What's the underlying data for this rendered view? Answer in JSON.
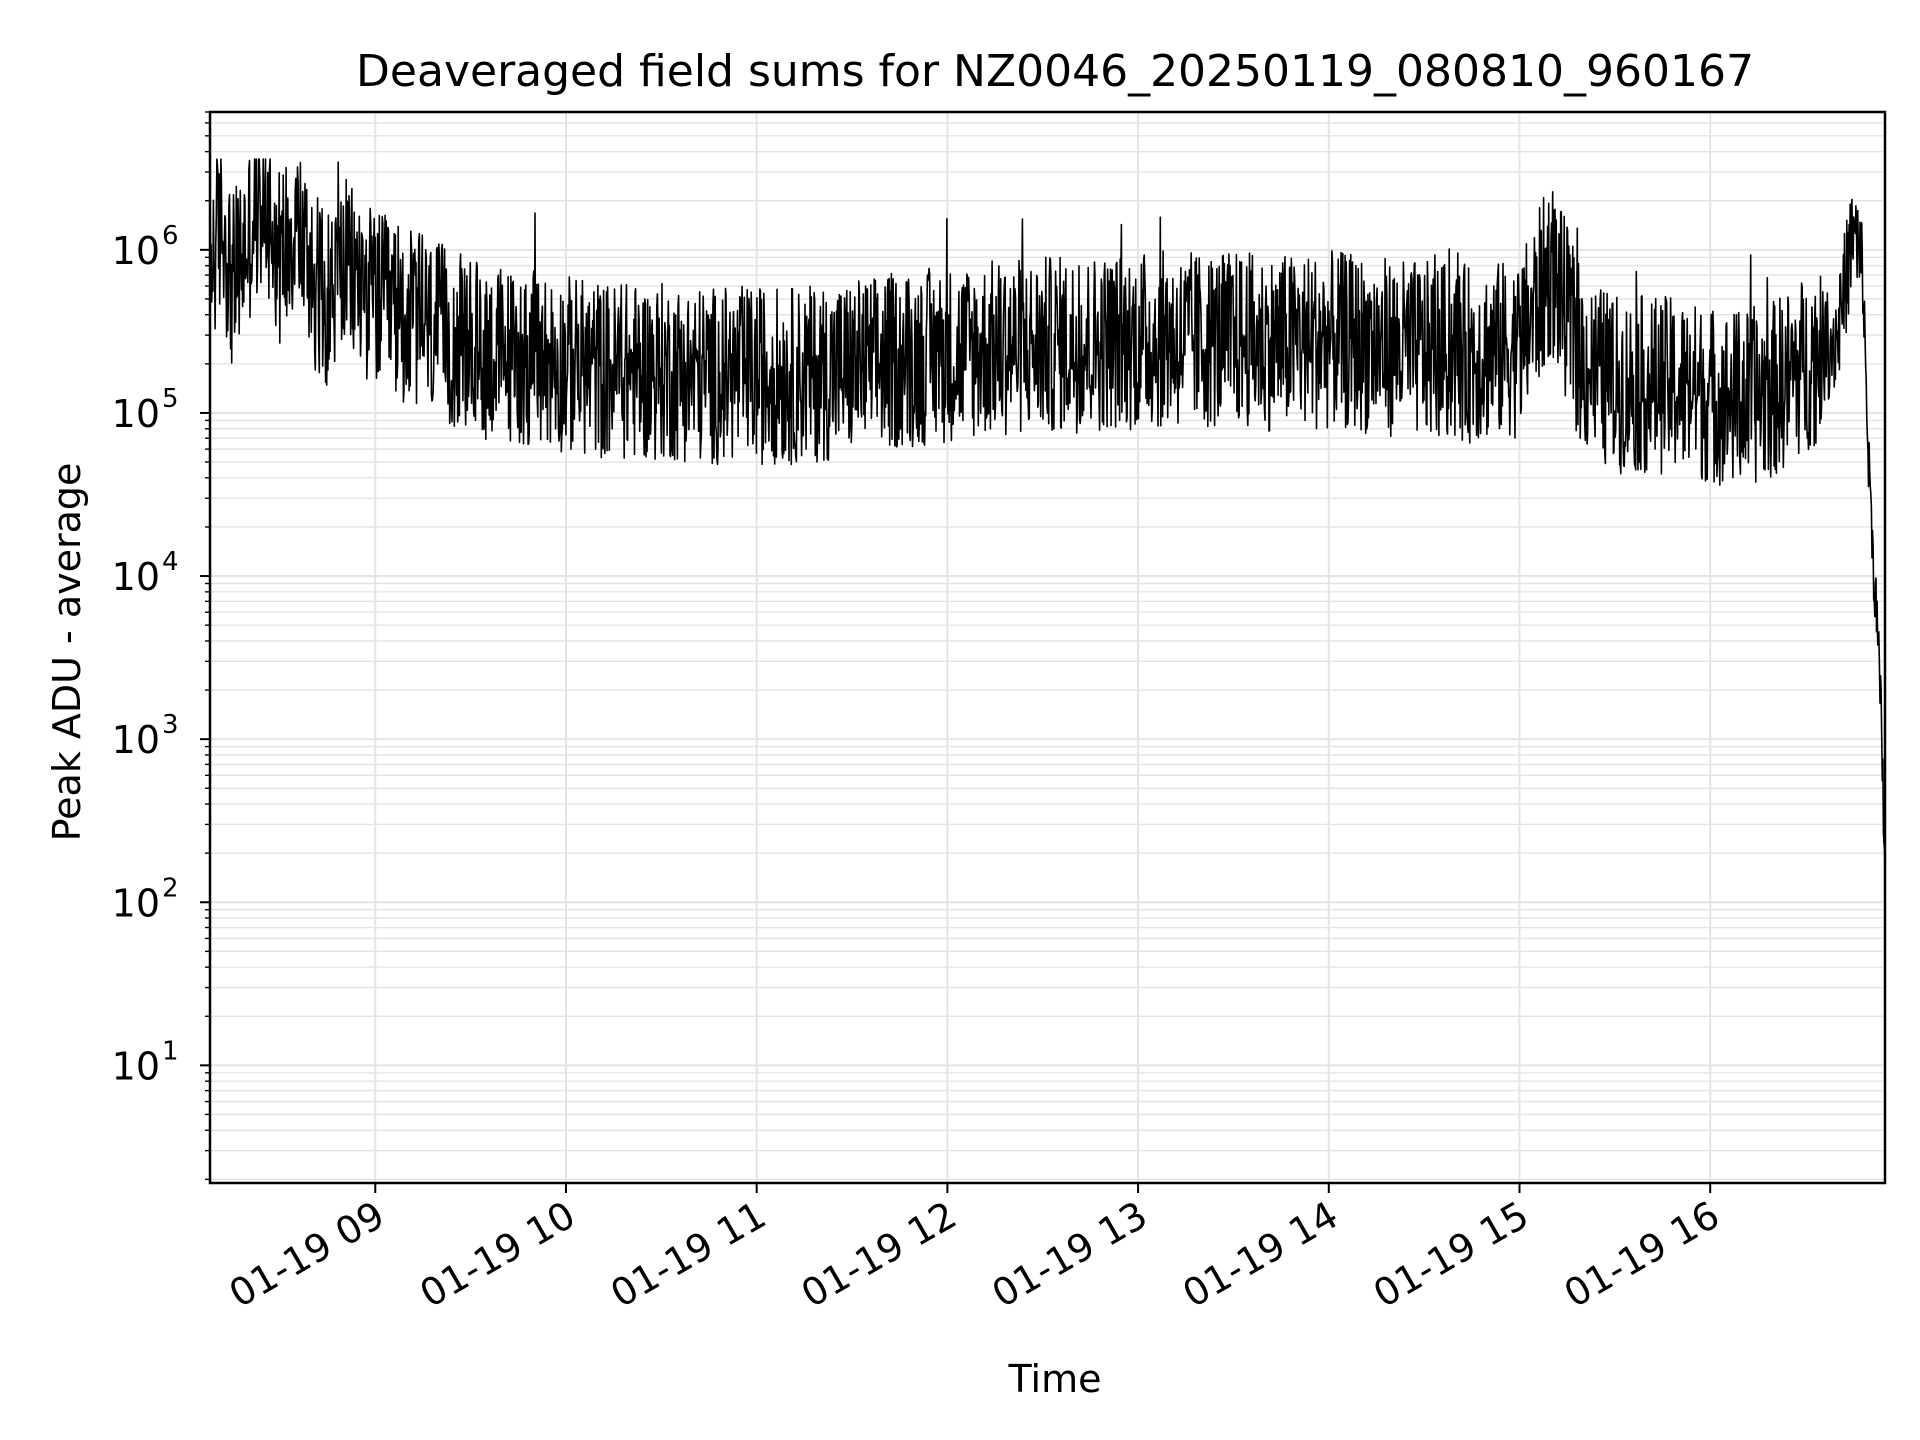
{
  "chart_data": {
    "type": "line",
    "title": "Deaveraged field sums for NZ0046_20250119_080810_960167",
    "xlabel": "Time",
    "ylabel": "Peak ADU - average",
    "y_scale": "log",
    "ylim": [
      1.9,
      7000000
    ],
    "xlim": [
      "01-19 08:08",
      "01-19 16:55"
    ],
    "grid": true,
    "legend": "none",
    "colors": {
      "line": "#000000",
      "grid": "#e4e4e4",
      "axes": "#000000",
      "background": "#ffffff"
    },
    "x_ticks": [
      {
        "label": "01-19 09",
        "hour": 9
      },
      {
        "label": "01-19 10",
        "hour": 10
      },
      {
        "label": "01-19 11",
        "hour": 11
      },
      {
        "label": "01-19 12",
        "hour": 12
      },
      {
        "label": "01-19 13",
        "hour": 13
      },
      {
        "label": "01-19 14",
        "hour": 14
      },
      {
        "label": "01-19 15",
        "hour": 15
      },
      {
        "label": "01-19 16",
        "hour": 16
      }
    ],
    "y_ticks": [
      {
        "base": "10",
        "exp": "1",
        "value": 10
      },
      {
        "base": "10",
        "exp": "2",
        "value": 100
      },
      {
        "base": "10",
        "exp": "3",
        "value": 1000
      },
      {
        "base": "10",
        "exp": "4",
        "value": 10000
      },
      {
        "base": "10",
        "exp": "5",
        "value": 100000
      },
      {
        "base": "10",
        "exp": "6",
        "value": 1000000
      }
    ],
    "series": [
      {
        "x": [
          "01-19 08:08",
          "01-19 08:12",
          "01-19 08:15",
          "01-19 08:20",
          "01-19 08:25",
          "01-19 08:30",
          "01-19 08:35",
          "01-19 08:40",
          "01-19 08:45",
          "01-19 08:50",
          "01-19 09:00",
          "01-19 09:15",
          "01-19 09:30",
          "01-19 09:45",
          "01-19 10:00",
          "01-19 10:15",
          "01-19 10:30",
          "01-19 10:45",
          "01-19 11:00",
          "01-19 11:15",
          "01-19 11:30",
          "01-19 11:45",
          "01-19 12:00",
          "01-19 12:15",
          "01-19 12:30",
          "01-19 12:45",
          "01-19 13:00",
          "01-19 13:15",
          "01-19 13:30",
          "01-19 13:45",
          "01-19 14:00",
          "01-19 14:15",
          "01-19 14:30",
          "01-19 14:45",
          "01-19 15:00",
          "01-19 15:10",
          "01-19 15:20",
          "01-19 15:30",
          "01-19 15:45",
          "01-19 16:00",
          "01-19 16:10",
          "01-19 16:20",
          "01-19 16:30",
          "01-19 16:40",
          "01-19 16:45",
          "01-19 16:48",
          "01-19 16:50",
          "01-19 16:52",
          "01-19 16:54",
          "01-19 16:55"
        ],
        "y": [
          800000,
          1500000,
          600000,
          1200000,
          2200000,
          900000,
          1600000,
          700000,
          500000,
          800000,
          500000,
          350000,
          250000,
          220000,
          200000,
          180000,
          180000,
          170000,
          170000,
          170000,
          190000,
          210000,
          230000,
          250000,
          260000,
          270000,
          280000,
          280000,
          280000,
          270000,
          280000,
          260000,
          240000,
          230000,
          250000,
          800000,
          200000,
          150000,
          150000,
          130000,
          120000,
          140000,
          200000,
          300000,
          1300000,
          700000,
          40000,
          8000,
          1000,
          150
        ]
      }
    ]
  }
}
